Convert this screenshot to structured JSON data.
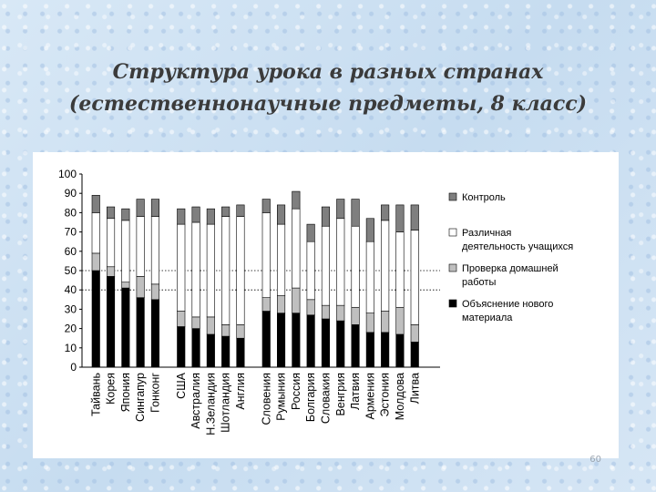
{
  "slide": {
    "title_line1": "Структура урока в разных странах",
    "title_line2": "(естественнонаучные предметы, 8 класс)",
    "number": "60"
  },
  "chart_data": {
    "type": "bar",
    "stacked": true,
    "ylim": [
      0,
      100
    ],
    "yticks": [
      0,
      10,
      20,
      30,
      40,
      50,
      60,
      70,
      80,
      90,
      100
    ],
    "reference_lines": [
      40,
      50
    ],
    "grid": false,
    "legend_position": "right",
    "groups": [
      [
        "Тайвань",
        "Корея",
        "Япония",
        "Сингапур",
        "Гонконг"
      ],
      [
        "США",
        "Австралия",
        "Н.Зеландия",
        "Шотландия",
        "Англия"
      ],
      [
        "Словения",
        "Румыния",
        "Россия",
        "Болгария",
        "Словакия",
        "Венгрия",
        "Латвия",
        "Армения",
        "Эстония",
        "Молдова",
        "Литва"
      ]
    ],
    "categories": [
      "Тайвань",
      "Корея",
      "Япония",
      "Сингапур",
      "Гонконг",
      "США",
      "Австралия",
      "Н.Зеландия",
      "Шотландия",
      "Англия",
      "Словения",
      "Румыния",
      "Россия",
      "Болгария",
      "Словакия",
      "Венгрия",
      "Латвия",
      "Армения",
      "Эстония",
      "Молдова",
      "Литва"
    ],
    "series": [
      {
        "name": "Объяснение нового материала",
        "color": "#000000",
        "values": [
          50,
          47,
          41,
          36,
          35,
          21,
          20,
          17,
          16,
          15,
          29,
          28,
          28,
          27,
          25,
          24,
          22,
          18,
          18,
          17,
          13
        ]
      },
      {
        "name": "Проверка домашней работы",
        "color": "#bfbfbf",
        "values": [
          9,
          5,
          3,
          11,
          8,
          8,
          6,
          9,
          6,
          7,
          7,
          9,
          13,
          8,
          7,
          8,
          9,
          10,
          11,
          14,
          9
        ]
      },
      {
        "name": "Различная деятельность учащихся",
        "color": "#ffffff",
        "values": [
          21,
          25,
          32,
          31,
          35,
          45,
          49,
          48,
          56,
          56,
          44,
          37,
          41,
          30,
          41,
          45,
          42,
          37,
          47,
          39,
          49
        ]
      },
      {
        "name": "Контроль",
        "color": "#7f7f7f",
        "values": [
          9,
          6,
          6,
          9,
          9,
          8,
          8,
          8,
          5,
          6,
          7,
          10,
          9,
          9,
          10,
          10,
          14,
          12,
          8,
          14,
          13
        ]
      }
    ],
    "legend_order": [
      "Контроль",
      "Различная деятельность учащихся",
      "Проверка домашней работы",
      "Объяснение нового материала"
    ],
    "legend_lines": [
      [
        "Контроль"
      ],
      [
        "Различная",
        "деятельность учащихся"
      ],
      [
        "Проверка домашней",
        "работы"
      ],
      [
        "Объяснение нового",
        "материала"
      ]
    ]
  }
}
